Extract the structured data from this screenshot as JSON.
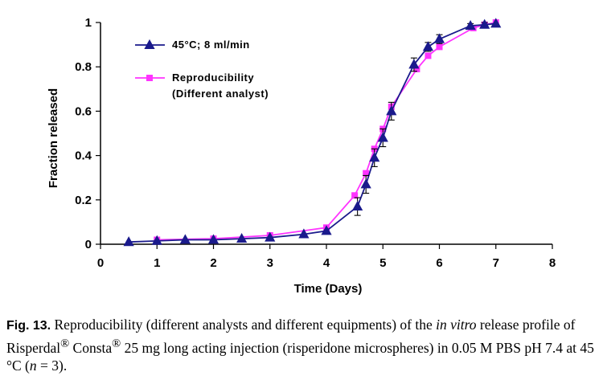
{
  "chart_data": {
    "type": "line",
    "xlabel": "Time (Days)",
    "ylabel": "Fraction released",
    "xlim": [
      0,
      8
    ],
    "ylim": [
      0,
      1
    ],
    "xticks": [
      0,
      1,
      2,
      3,
      4,
      5,
      6,
      7,
      8
    ],
    "yticks": [
      0,
      0.2,
      0.4,
      0.6,
      0.8,
      1
    ],
    "ytick_labels": [
      "0",
      "0.2",
      "0.4",
      "0.6",
      "0.8",
      "1"
    ],
    "legend_position": "top-left",
    "series": [
      {
        "name": "45°C; 8 ml/min",
        "color": "#1a1a8c",
        "marker": "triangle",
        "x": [
          0.5,
          1.0,
          1.5,
          2.0,
          2.5,
          3.0,
          3.6,
          4.0,
          4.55,
          4.7,
          4.85,
          5.0,
          5.15,
          5.55,
          5.8,
          6.0,
          6.55,
          6.8,
          7.0
        ],
        "y": [
          0.01,
          0.015,
          0.02,
          0.02,
          0.025,
          0.03,
          0.045,
          0.06,
          0.17,
          0.27,
          0.39,
          0.48,
          0.6,
          0.81,
          0.89,
          0.925,
          0.985,
          0.99,
          0.995
        ],
        "err": [
          0.003,
          0.003,
          0.003,
          0.003,
          0.004,
          0.005,
          0.006,
          0.008,
          0.04,
          0.04,
          0.04,
          0.04,
          0.04,
          0.03,
          0.02,
          0.02,
          0.01,
          0.01,
          0.008
        ]
      },
      {
        "name": "Reproducibility\n(Different analyst)",
        "legend_lines": [
          "Reproducibility",
          "(Different analyst)"
        ],
        "color": "#ff33ff",
        "marker": "square",
        "x": [
          1.0,
          2.0,
          3.0,
          4.0,
          4.5,
          4.7,
          4.85,
          5.0,
          5.15,
          5.6,
          5.8,
          6.0,
          6.6,
          6.8,
          7.0
        ],
        "y": [
          0.02,
          0.025,
          0.04,
          0.075,
          0.22,
          0.32,
          0.43,
          0.52,
          0.62,
          0.79,
          0.85,
          0.89,
          0.975,
          0.99,
          1.0
        ]
      }
    ]
  },
  "caption": {
    "label": "Fig. 13.",
    "part1": "Reproducibility (different analysts and different equipments) of the",
    "italic1": "in vitro",
    "part2": "release profile of Risperdal",
    "reg1": "®",
    "part3": "Consta",
    "reg2": "®",
    "part4": "25 mg long acting injection (risperidone microspheres) in 0.05 M PBS pH 7.4 at 45 °C (",
    "italic2": "n",
    "part5": "= 3)."
  }
}
